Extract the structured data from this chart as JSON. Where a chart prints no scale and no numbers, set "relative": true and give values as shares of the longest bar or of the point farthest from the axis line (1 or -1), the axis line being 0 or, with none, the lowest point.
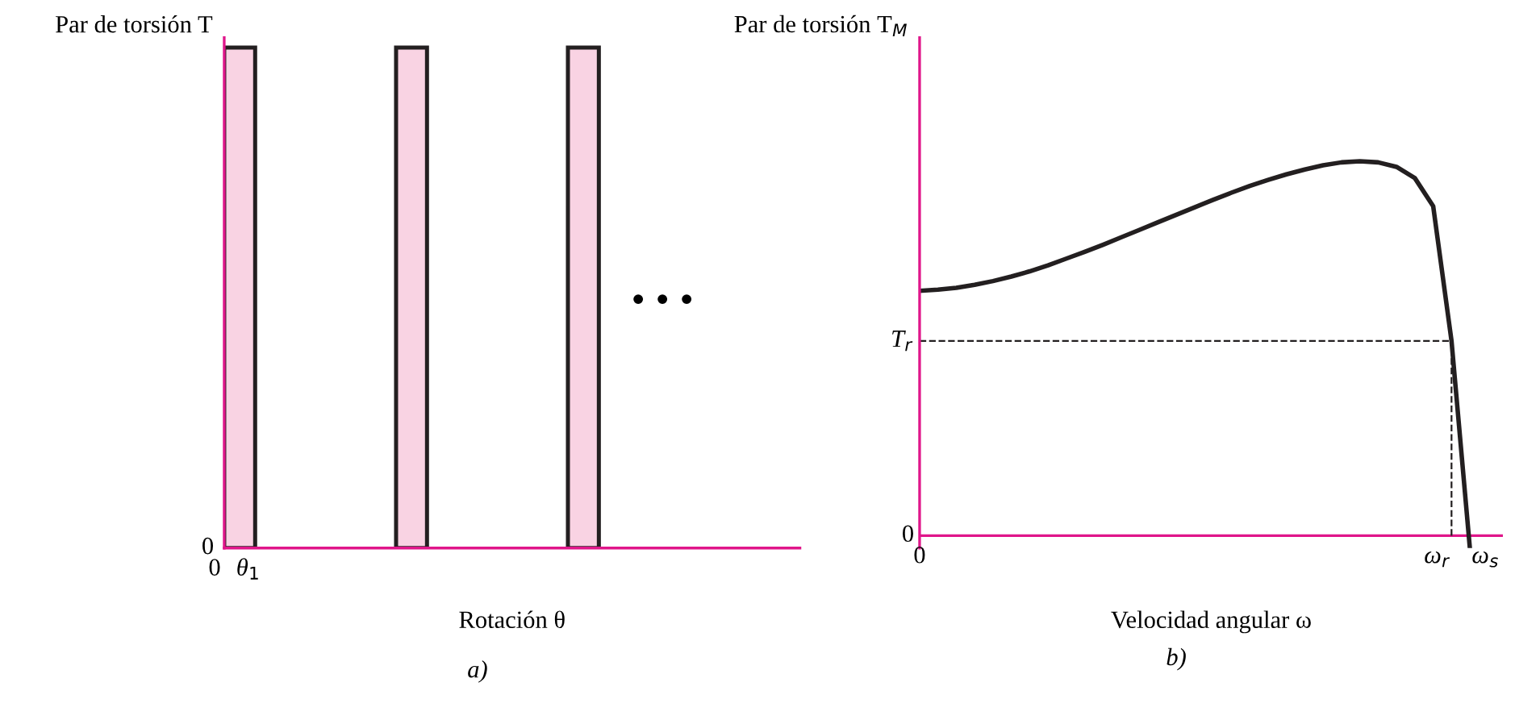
{
  "chart_data": [
    {
      "type": "bar",
      "relative": true,
      "ylabel": "Par de torsión T",
      "xlabel": "Rotación θ",
      "categories": [
        null,
        null,
        null
      ],
      "values": [
        1,
        1,
        1
      ],
      "color": "#f9d3e3",
      "annotations": [
        "0",
        "0",
        "θ$_{1}$",
        "• • •",
        "a)"
      ],
      "legend": false
    },
    {
      "type": "line",
      "relative": true,
      "ylabel": "Par de torsión T$_{M}$",
      "xlabel": "Velocidad angular ω",
      "categories": [
        null,
        null,
        null,
        null,
        null,
        null,
        null,
        null,
        null,
        null,
        null,
        null,
        null,
        null,
        null,
        null,
        null,
        null,
        null,
        null,
        null,
        null,
        null,
        null,
        null,
        null,
        null,
        null,
        null,
        null,
        null
      ],
      "values": [
        0.654,
        0.657,
        0.662,
        0.67,
        0.68,
        0.692,
        0.706,
        0.722,
        0.74,
        0.758,
        0.777,
        0.797,
        0.817,
        0.837,
        0.857,
        0.877,
        0.897,
        0.916,
        0.934,
        0.95,
        0.965,
        0.978,
        0.989,
        0.997,
        1.0,
        0.997,
        0.985,
        0.955,
        0.88,
        0.52,
        -0.033
      ],
      "color": "#231f20",
      "ref_lines": [
        {
          "axis": "y",
          "value": 0.52,
          "label": "T$_{r}$",
          "line_style": "dashed"
        },
        {
          "axis": "y",
          "value": 0,
          "color": "#e0168a",
          "line_style": "solid"
        }
      ],
      "annotations": [
        "0",
        "0",
        "ω$_{r}$",
        "ω$_{s}$",
        "b)"
      ],
      "legend": false,
      "line_style": "solid",
      "marker": "none"
    }
  ]
}
